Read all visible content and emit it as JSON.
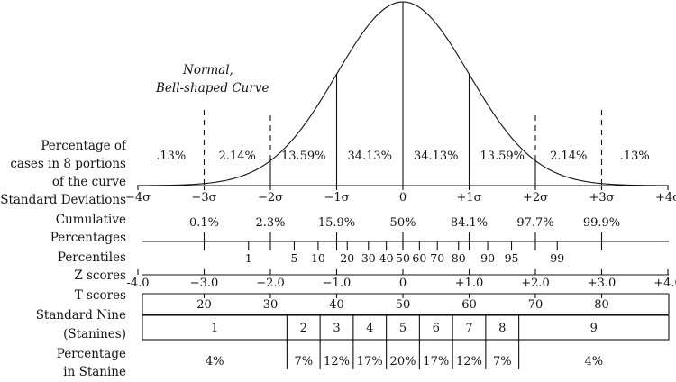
{
  "curve_label": [
    "Normal,",
    "Bell-shaped Curve"
  ],
  "row_labels": {
    "portions": [
      "Percentage of",
      "cases in 8 portions",
      "of the curve"
    ],
    "sd": "Standard Deviations",
    "cumulative": [
      "Cumulative",
      "Percentages"
    ],
    "percentiles": "Percentiles",
    "z": "Z scores",
    "t": "T scores",
    "stanine": [
      "Standard Nine",
      "(Stanines)"
    ],
    "stanine_pct": [
      "Percentage",
      "in Stanine"
    ]
  },
  "portion_percentages": [
    {
      "x": -3.5,
      "label": ".13%"
    },
    {
      "x": -2.5,
      "label": "2.14%"
    },
    {
      "x": -1.5,
      "label": "13.59%"
    },
    {
      "x": -0.5,
      "label": "34.13%"
    },
    {
      "x": 0.5,
      "label": "34.13%"
    },
    {
      "x": 1.5,
      "label": "13.59%"
    },
    {
      "x": 2.5,
      "label": "2.14%"
    },
    {
      "x": 3.5,
      "label": ".13%"
    }
  ],
  "sd_ticks": [
    {
      "x": -4,
      "label": "−4σ"
    },
    {
      "x": -3,
      "label": "−3σ"
    },
    {
      "x": -2,
      "label": "−2σ"
    },
    {
      "x": -1,
      "label": "−1σ"
    },
    {
      "x": 0,
      "label": "0"
    },
    {
      "x": 1,
      "label": "+1σ"
    },
    {
      "x": 2,
      "label": "+2σ"
    },
    {
      "x": 3,
      "label": "+3σ"
    },
    {
      "x": 4,
      "label": "+4σ"
    }
  ],
  "cumulative": [
    {
      "x": -3,
      "label": "0.1%"
    },
    {
      "x": -2,
      "label": "2.3%"
    },
    {
      "x": -1,
      "label": "15.9%"
    },
    {
      "x": 0,
      "label": "50%"
    },
    {
      "x": 1,
      "label": "84.1%"
    },
    {
      "x": 2,
      "label": "97.7%"
    },
    {
      "x": 3,
      "label": "99.9%"
    }
  ],
  "percentiles": [
    {
      "x": -2.33,
      "label": "1"
    },
    {
      "x": -1.64,
      "label": "5"
    },
    {
      "x": -1.28,
      "label": "10"
    },
    {
      "x": -0.84,
      "label": "20"
    },
    {
      "x": -0.52,
      "label": "30"
    },
    {
      "x": -0.25,
      "label": "40"
    },
    {
      "x": 0,
      "label": "50"
    },
    {
      "x": 0.25,
      "label": "60"
    },
    {
      "x": 0.52,
      "label": "70"
    },
    {
      "x": 0.84,
      "label": "80"
    },
    {
      "x": 1.28,
      "label": "90"
    },
    {
      "x": 1.64,
      "label": "95"
    },
    {
      "x": 2.33,
      "label": "99"
    }
  ],
  "z_scores": [
    {
      "x": -4,
      "label": "-4.0"
    },
    {
      "x": -3,
      "label": "−3.0"
    },
    {
      "x": -2,
      "label": "−2.0"
    },
    {
      "x": -1,
      "label": "−1.0"
    },
    {
      "x": 0,
      "label": "0"
    },
    {
      "x": 1,
      "label": "+1.0"
    },
    {
      "x": 2,
      "label": "+2.0"
    },
    {
      "x": 3,
      "label": "+3.0"
    },
    {
      "x": 4,
      "label": "+4.0"
    }
  ],
  "t_scores": [
    {
      "x": -3,
      "label": "20"
    },
    {
      "x": -2,
      "label": "30"
    },
    {
      "x": -1,
      "label": "40"
    },
    {
      "x": 0,
      "label": "50"
    },
    {
      "x": 1,
      "label": "60"
    },
    {
      "x": 2,
      "label": "70"
    },
    {
      "x": 3,
      "label": "80"
    }
  ],
  "stanine_boundaries": [
    -1.75,
    -1.25,
    -0.75,
    -0.25,
    0.25,
    0.75,
    1.25,
    1.75
  ],
  "stanines": [
    {
      "label": "1",
      "pct": "4%"
    },
    {
      "label": "2",
      "pct": "7%"
    },
    {
      "label": "3",
      "pct": "12%"
    },
    {
      "label": "4",
      "pct": "17%"
    },
    {
      "label": "5",
      "pct": "20%"
    },
    {
      "label": "6",
      "pct": "17%"
    },
    {
      "label": "7",
      "pct": "12%"
    },
    {
      "label": "8",
      "pct": "7%"
    },
    {
      "label": "9",
      "pct": "4%"
    }
  ]
}
